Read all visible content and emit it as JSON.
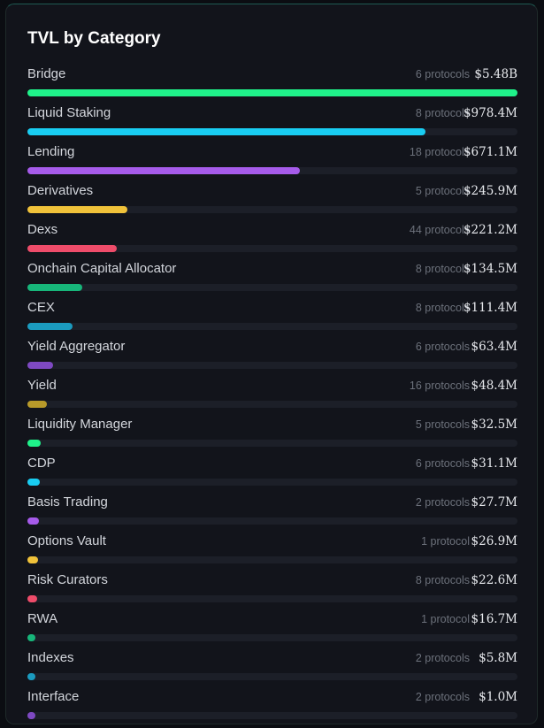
{
  "panel": {
    "title": "TVL by Category",
    "categories": [
      {
        "name": "Bridge",
        "protocols": "6 protocols",
        "value": "$5.48B",
        "fraction": 1.0,
        "color": "#1ff28a"
      },
      {
        "name": "Liquid Staking",
        "protocols": "8 protocols",
        "value": "$978.4M",
        "fraction": 0.812,
        "color": "#19cdf2"
      },
      {
        "name": "Lending",
        "protocols": "18 protocols",
        "value": "$671.1M",
        "fraction": 0.556,
        "color": "#a65bea"
      },
      {
        "name": "Derivatives",
        "protocols": "5 protocols",
        "value": "$245.9M",
        "fraction": 0.204,
        "color": "#f0c23a"
      },
      {
        "name": "Dexs",
        "protocols": "44 protocols",
        "value": "$221.2M",
        "fraction": 0.183,
        "color": "#ee4c6a"
      },
      {
        "name": "Onchain Capital Allocator",
        "protocols": "8 protocols",
        "value": "$134.5M",
        "fraction": 0.112,
        "color": "#17b67a"
      },
      {
        "name": "CEX",
        "protocols": "8 protocols",
        "value": "$111.4M",
        "fraction": 0.092,
        "color": "#1b9bbf"
      },
      {
        "name": "Yield Aggregator",
        "protocols": "6 protocols",
        "value": "$63.4M",
        "fraction": 0.053,
        "color": "#7e49c2"
      },
      {
        "name": "Yield",
        "protocols": "16 protocols",
        "value": "$48.4M",
        "fraction": 0.04,
        "color": "#b89a2a"
      },
      {
        "name": "Liquidity Manager",
        "protocols": "5 protocols",
        "value": "$32.5M",
        "fraction": 0.027,
        "color": "#1ff28a"
      },
      {
        "name": "CDP",
        "protocols": "6 protocols",
        "value": "$31.1M",
        "fraction": 0.026,
        "color": "#19cdf2"
      },
      {
        "name": "Basis Trading",
        "protocols": "2 protocols",
        "value": "$27.7M",
        "fraction": 0.023,
        "color": "#a65bea"
      },
      {
        "name": "Options Vault",
        "protocols": "1 protocol",
        "value": "$26.9M",
        "fraction": 0.022,
        "color": "#f0c23a"
      },
      {
        "name": "Risk Curators",
        "protocols": "8 protocols",
        "value": "$22.6M",
        "fraction": 0.019,
        "color": "#ee4c6a"
      },
      {
        "name": "RWA",
        "protocols": "1 protocol",
        "value": "$16.7M",
        "fraction": 0.014,
        "color": "#17b67a"
      },
      {
        "name": "Indexes",
        "protocols": "2 protocols",
        "value": "$5.8M",
        "fraction": 0.011,
        "color": "#1b9bbf"
      },
      {
        "name": "Interface",
        "protocols": "2 protocols",
        "value": "$1.0M",
        "fraction": 0.009,
        "color": "#7e49c2"
      }
    ]
  }
}
